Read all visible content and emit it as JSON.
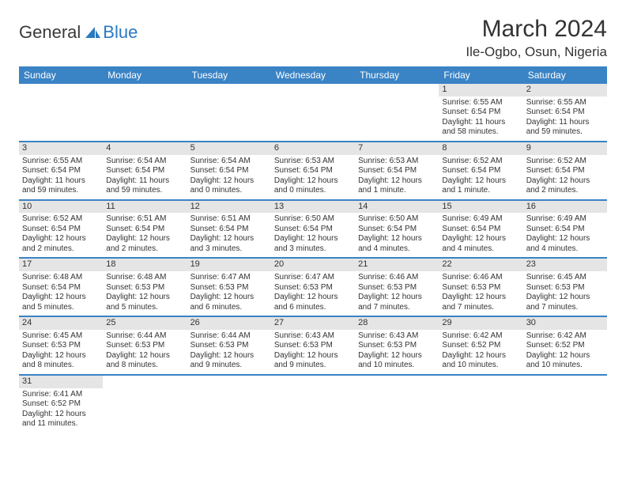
{
  "brand": {
    "part1": "General",
    "part2": "Blue"
  },
  "title": "March 2024",
  "location": "Ile-Ogbo, Osun, Nigeria",
  "colors": {
    "header_bg": "#3a83c5",
    "header_text": "#ffffff",
    "daynum_bg": "#e5e5e5",
    "row_border": "#3a83c5",
    "text": "#333333",
    "brand_blue": "#2a7ac0"
  },
  "weekdays": [
    "Sunday",
    "Monday",
    "Tuesday",
    "Wednesday",
    "Thursday",
    "Friday",
    "Saturday"
  ],
  "weeks": [
    [
      null,
      null,
      null,
      null,
      null,
      {
        "n": "1",
        "sr": "Sunrise: 6:55 AM",
        "ss": "Sunset: 6:54 PM",
        "dl": "Daylight: 11 hours and 58 minutes."
      },
      {
        "n": "2",
        "sr": "Sunrise: 6:55 AM",
        "ss": "Sunset: 6:54 PM",
        "dl": "Daylight: 11 hours and 59 minutes."
      }
    ],
    [
      {
        "n": "3",
        "sr": "Sunrise: 6:55 AM",
        "ss": "Sunset: 6:54 PM",
        "dl": "Daylight: 11 hours and 59 minutes."
      },
      {
        "n": "4",
        "sr": "Sunrise: 6:54 AM",
        "ss": "Sunset: 6:54 PM",
        "dl": "Daylight: 11 hours and 59 minutes."
      },
      {
        "n": "5",
        "sr": "Sunrise: 6:54 AM",
        "ss": "Sunset: 6:54 PM",
        "dl": "Daylight: 12 hours and 0 minutes."
      },
      {
        "n": "6",
        "sr": "Sunrise: 6:53 AM",
        "ss": "Sunset: 6:54 PM",
        "dl": "Daylight: 12 hours and 0 minutes."
      },
      {
        "n": "7",
        "sr": "Sunrise: 6:53 AM",
        "ss": "Sunset: 6:54 PM",
        "dl": "Daylight: 12 hours and 1 minute."
      },
      {
        "n": "8",
        "sr": "Sunrise: 6:52 AM",
        "ss": "Sunset: 6:54 PM",
        "dl": "Daylight: 12 hours and 1 minute."
      },
      {
        "n": "9",
        "sr": "Sunrise: 6:52 AM",
        "ss": "Sunset: 6:54 PM",
        "dl": "Daylight: 12 hours and 2 minutes."
      }
    ],
    [
      {
        "n": "10",
        "sr": "Sunrise: 6:52 AM",
        "ss": "Sunset: 6:54 PM",
        "dl": "Daylight: 12 hours and 2 minutes."
      },
      {
        "n": "11",
        "sr": "Sunrise: 6:51 AM",
        "ss": "Sunset: 6:54 PM",
        "dl": "Daylight: 12 hours and 2 minutes."
      },
      {
        "n": "12",
        "sr": "Sunrise: 6:51 AM",
        "ss": "Sunset: 6:54 PM",
        "dl": "Daylight: 12 hours and 3 minutes."
      },
      {
        "n": "13",
        "sr": "Sunrise: 6:50 AM",
        "ss": "Sunset: 6:54 PM",
        "dl": "Daylight: 12 hours and 3 minutes."
      },
      {
        "n": "14",
        "sr": "Sunrise: 6:50 AM",
        "ss": "Sunset: 6:54 PM",
        "dl": "Daylight: 12 hours and 4 minutes."
      },
      {
        "n": "15",
        "sr": "Sunrise: 6:49 AM",
        "ss": "Sunset: 6:54 PM",
        "dl": "Daylight: 12 hours and 4 minutes."
      },
      {
        "n": "16",
        "sr": "Sunrise: 6:49 AM",
        "ss": "Sunset: 6:54 PM",
        "dl": "Daylight: 12 hours and 4 minutes."
      }
    ],
    [
      {
        "n": "17",
        "sr": "Sunrise: 6:48 AM",
        "ss": "Sunset: 6:54 PM",
        "dl": "Daylight: 12 hours and 5 minutes."
      },
      {
        "n": "18",
        "sr": "Sunrise: 6:48 AM",
        "ss": "Sunset: 6:53 PM",
        "dl": "Daylight: 12 hours and 5 minutes."
      },
      {
        "n": "19",
        "sr": "Sunrise: 6:47 AM",
        "ss": "Sunset: 6:53 PM",
        "dl": "Daylight: 12 hours and 6 minutes."
      },
      {
        "n": "20",
        "sr": "Sunrise: 6:47 AM",
        "ss": "Sunset: 6:53 PM",
        "dl": "Daylight: 12 hours and 6 minutes."
      },
      {
        "n": "21",
        "sr": "Sunrise: 6:46 AM",
        "ss": "Sunset: 6:53 PM",
        "dl": "Daylight: 12 hours and 7 minutes."
      },
      {
        "n": "22",
        "sr": "Sunrise: 6:46 AM",
        "ss": "Sunset: 6:53 PM",
        "dl": "Daylight: 12 hours and 7 minutes."
      },
      {
        "n": "23",
        "sr": "Sunrise: 6:45 AM",
        "ss": "Sunset: 6:53 PM",
        "dl": "Daylight: 12 hours and 7 minutes."
      }
    ],
    [
      {
        "n": "24",
        "sr": "Sunrise: 6:45 AM",
        "ss": "Sunset: 6:53 PM",
        "dl": "Daylight: 12 hours and 8 minutes."
      },
      {
        "n": "25",
        "sr": "Sunrise: 6:44 AM",
        "ss": "Sunset: 6:53 PM",
        "dl": "Daylight: 12 hours and 8 minutes."
      },
      {
        "n": "26",
        "sr": "Sunrise: 6:44 AM",
        "ss": "Sunset: 6:53 PM",
        "dl": "Daylight: 12 hours and 9 minutes."
      },
      {
        "n": "27",
        "sr": "Sunrise: 6:43 AM",
        "ss": "Sunset: 6:53 PM",
        "dl": "Daylight: 12 hours and 9 minutes."
      },
      {
        "n": "28",
        "sr": "Sunrise: 6:43 AM",
        "ss": "Sunset: 6:53 PM",
        "dl": "Daylight: 12 hours and 10 minutes."
      },
      {
        "n": "29",
        "sr": "Sunrise: 6:42 AM",
        "ss": "Sunset: 6:52 PM",
        "dl": "Daylight: 12 hours and 10 minutes."
      },
      {
        "n": "30",
        "sr": "Sunrise: 6:42 AM",
        "ss": "Sunset: 6:52 PM",
        "dl": "Daylight: 12 hours and 10 minutes."
      }
    ],
    [
      {
        "n": "31",
        "sr": "Sunrise: 6:41 AM",
        "ss": "Sunset: 6:52 PM",
        "dl": "Daylight: 12 hours and 11 minutes."
      },
      null,
      null,
      null,
      null,
      null,
      null
    ]
  ]
}
